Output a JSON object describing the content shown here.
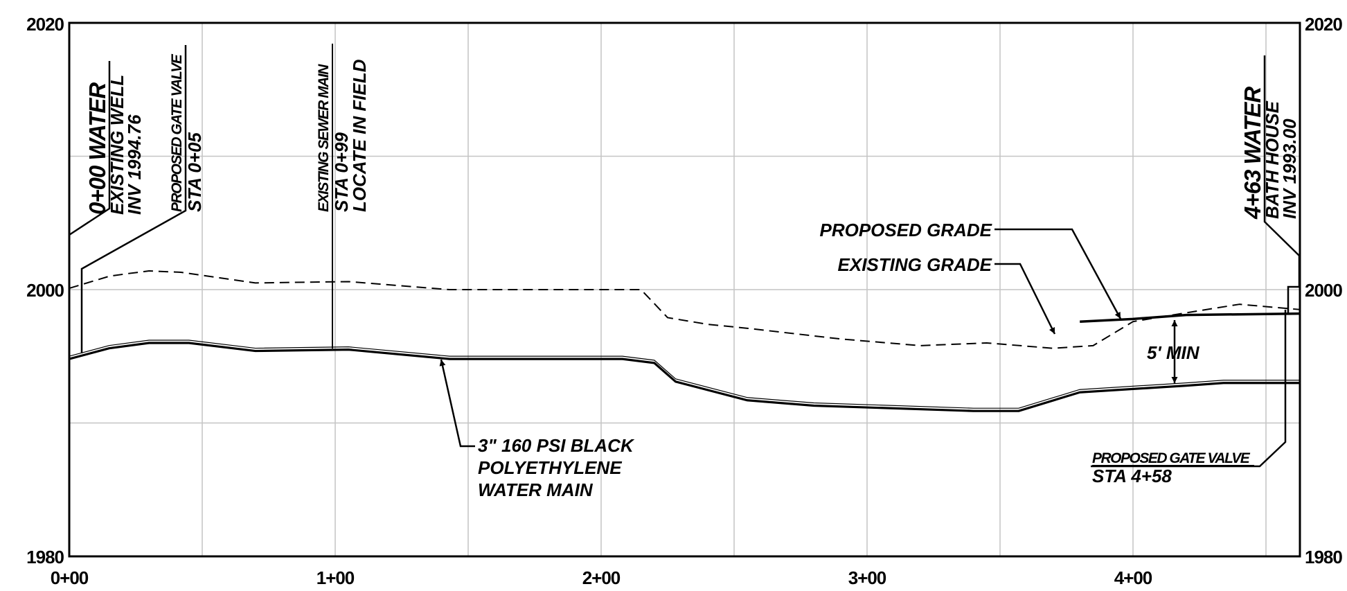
{
  "chart_data": {
    "type": "line",
    "x_ticks": [
      "0+00",
      "1+00",
      "2+00",
      "3+00",
      "4+00"
    ],
    "y_ticks": [
      "1980",
      "2000",
      "2020"
    ],
    "xlim": [
      0,
      463
    ],
    "ylim": [
      1980,
      2020
    ],
    "grid": true,
    "series": [
      {
        "name": "EXISTING GRADE",
        "style": "dashed",
        "x": [
          0,
          15,
          22,
          30,
          42,
          70,
          105,
          143,
          215,
          225,
          240,
          255,
          290,
          320,
          345,
          370,
          385,
          400,
          415,
          440,
          463
        ],
        "y": [
          2000.1,
          2001.0,
          2001.2,
          2001.4,
          2001.3,
          2000.5,
          2000.6,
          2000.0,
          2000.0,
          1997.9,
          1997.4,
          1997.1,
          1996.3,
          1995.8,
          1996.0,
          1995.6,
          1995.8,
          1997.6,
          1998.1,
          1998.9,
          1998.5
        ]
      },
      {
        "name": "PROPOSED GRADE",
        "style": "solid",
        "x": [
          380,
          400,
          420,
          463
        ],
        "y": [
          1997.6,
          1997.8,
          1998.1,
          1998.2
        ]
      },
      {
        "name": "3\" 160 PSI BLACK POLYETHYLENE WATER MAIN",
        "style": "double",
        "x": [
          0,
          15,
          30,
          45,
          70,
          105,
          143,
          208,
          220,
          228,
          255,
          280,
          340,
          357,
          380,
          420,
          434,
          463
        ],
        "y": [
          1994.8,
          1995.6,
          1996.0,
          1996.0,
          1995.4,
          1995.5,
          1994.8,
          1994.8,
          1994.5,
          1993.1,
          1991.7,
          1991.3,
          1990.9,
          1990.9,
          1992.3,
          1992.8,
          1993.0,
          1993.0
        ]
      }
    ]
  },
  "annotations": {
    "start": {
      "title": "0+00 WATER",
      "line1": "EXISTING WELL",
      "line2": "INV 1994.76"
    },
    "valve_start": {
      "title": "PROPOSED GATE VALVE",
      "line1": "STA  0+05"
    },
    "sewer": {
      "title": "EXISTING SEWER MAIN",
      "line1": "STA  0+99",
      "line2": "LOCATE IN FIELD"
    },
    "end": {
      "title": "4+63 WATER",
      "line1": "BATH HOUSE",
      "line2": "INV 1993.00"
    },
    "proposed_grade": "PROPOSED GRADE",
    "existing_grade": "EXISTING GRADE",
    "min_cover": "5' MIN",
    "water_main": {
      "line1": "3\" 160 PSI BLACK",
      "line2": "POLYETHYLENE",
      "line3": "WATER MAIN"
    },
    "valve_end": {
      "title": "PROPOSED GATE VALVE",
      "line1": "STA  4+58"
    }
  }
}
